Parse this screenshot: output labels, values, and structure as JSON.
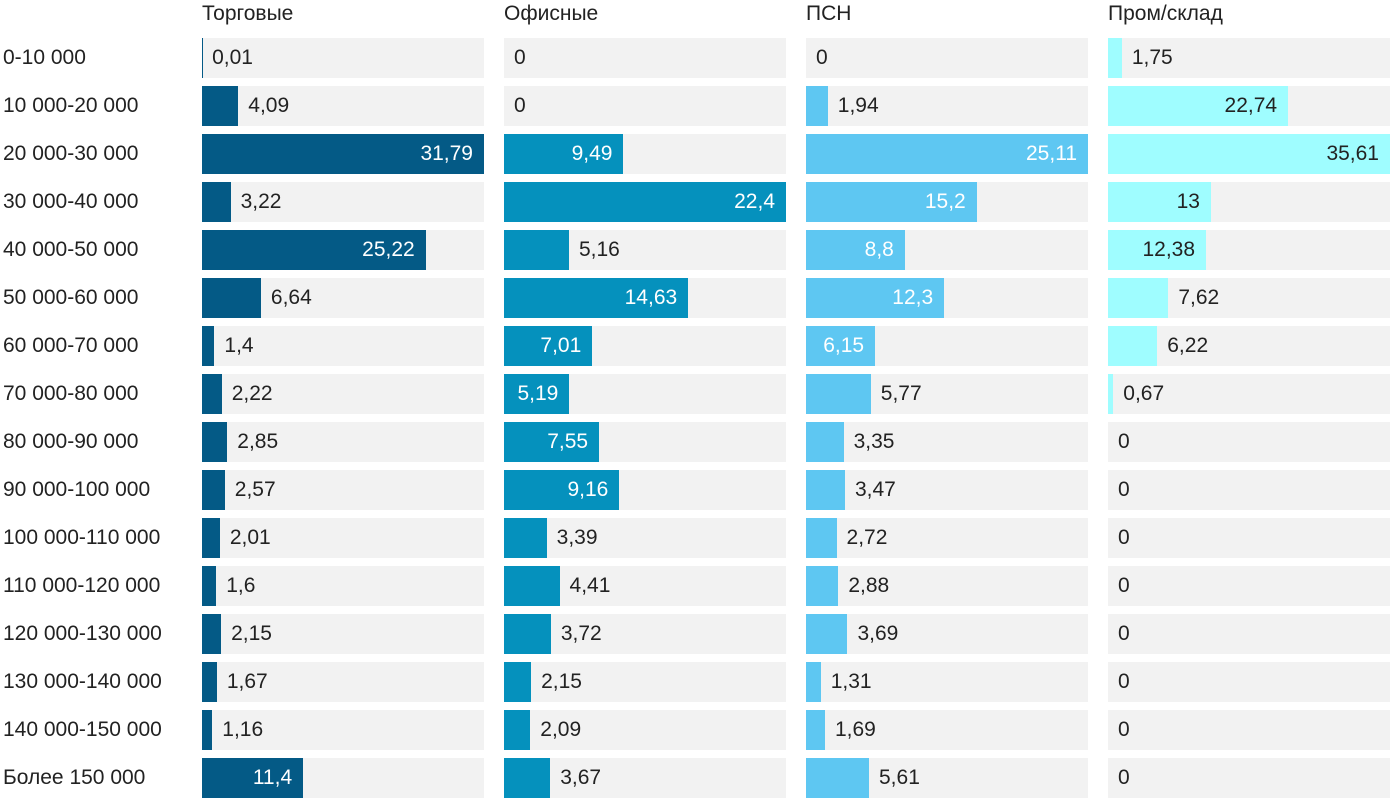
{
  "chart_data": {
    "type": "bar",
    "orientation": "horizontal",
    "layout": "small-multiples",
    "categories": [
      "0-10 000",
      "10 000-20 000",
      "20 000-30 000",
      "30 000-40 000",
      "40 000-50 000",
      "50 000-60 000",
      "60 000-70 000",
      "70 000-80 000",
      "80 000-90 000",
      "90 000-100 000",
      "100 000-110 000",
      "110 000-120 000",
      "120 000-130 000",
      "130 000-140 000",
      "140 000-150 000",
      "Более 150 000"
    ],
    "series": [
      {
        "name": "Торговые",
        "color": "#045a86",
        "values": [
          0.01,
          4.09,
          31.79,
          3.22,
          25.22,
          6.64,
          1.4,
          2.22,
          2.85,
          2.57,
          2.01,
          1.6,
          2.15,
          1.67,
          1.16,
          11.4
        ]
      },
      {
        "name": "Офисные",
        "color": "#0591bd",
        "values": [
          0,
          0,
          9.49,
          22.4,
          5.16,
          14.63,
          7.01,
          5.19,
          7.55,
          9.16,
          3.39,
          4.41,
          3.72,
          2.15,
          2.09,
          3.67
        ]
      },
      {
        "name": "ПСН",
        "color": "#5ec7f2",
        "values": [
          0,
          1.94,
          25.11,
          15.2,
          8.8,
          12.3,
          6.15,
          5.77,
          3.35,
          3.47,
          2.72,
          2.88,
          3.69,
          1.31,
          1.69,
          5.61
        ]
      },
      {
        "name": "Пром/склад",
        "color": "#9ffdff",
        "values": [
          1.75,
          22.74,
          35.61,
          13,
          12.38,
          7.62,
          6.22,
          0.67,
          0,
          0,
          0,
          0,
          0,
          0,
          0,
          0
        ]
      }
    ],
    "track_color": "#f2f2f2",
    "grid": false,
    "legend": "none"
  }
}
